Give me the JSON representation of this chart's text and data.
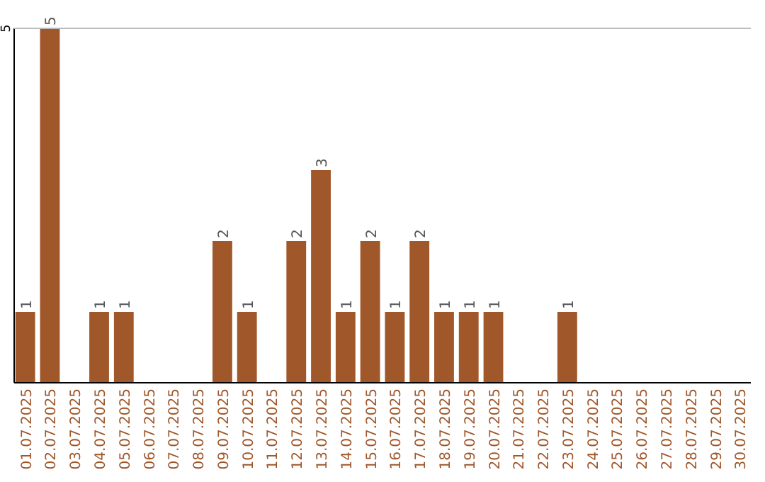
{
  "chart_data": {
    "type": "bar",
    "categories": [
      "01.07.2025",
      "02.07.2025",
      "03.07.2025",
      "04.07.2025",
      "05.07.2025",
      "06.07.2025",
      "07.07.2025",
      "08.07.2025",
      "09.07.2025",
      "10.07.2025",
      "11.07.2025",
      "12.07.2025",
      "13.07.2025",
      "14.07.2025",
      "15.07.2025",
      "16.07.2025",
      "17.07.2025",
      "18.07.2025",
      "19.07.2025",
      "20.07.2025",
      "21.07.2025",
      "22.07.2025",
      "23.07.2025",
      "24.07.2025",
      "25.07.2025",
      "26.07.2025",
      "27.07.2025",
      "28.07.2025",
      "29.07.2025",
      "30.07.2025"
    ],
    "values": [
      1,
      5,
      0,
      1,
      1,
      0,
      0,
      0,
      2,
      1,
      0,
      2,
      3,
      1,
      2,
      1,
      2,
      1,
      1,
      1,
      0,
      0,
      1,
      0,
      0,
      0,
      0,
      0,
      0,
      0
    ],
    "value_labels": [
      "1",
      "5",
      null,
      "1",
      "1",
      null,
      null,
      null,
      "2",
      "1",
      null,
      "2",
      "3",
      "1",
      "2",
      "1",
      "2",
      "1",
      "1",
      "1",
      null,
      null,
      "1",
      null,
      null,
      null,
      null,
      null,
      null,
      null
    ],
    "color": "#a0572a",
    "ylim": [
      0,
      5
    ],
    "yticks": [
      5
    ]
  }
}
